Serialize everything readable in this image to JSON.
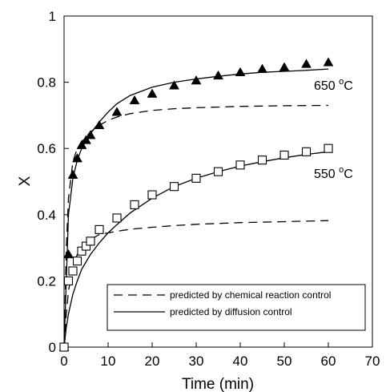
{
  "chart_data": {
    "type": "scatter",
    "xlabel": "Time (min)",
    "ylabel": "X",
    "xlim": [
      0,
      70
    ],
    "ylim": [
      0,
      1
    ],
    "x_ticks": [
      "0",
      "10",
      "20",
      "30",
      "40",
      "50",
      "60",
      "70"
    ],
    "y_ticks": [
      "0",
      "0.2",
      "0.4",
      "0.6",
      "0.8",
      "1"
    ],
    "grid": false,
    "legend": {
      "placement": "bottom-right",
      "entries": [
        {
          "label": "predicted by chemical reaction control",
          "style": "dashed"
        },
        {
          "label": "predicted by diffusion control",
          "style": "solid"
        }
      ]
    },
    "annotations": [
      {
        "text": "650 ",
        "sup": "o",
        "unit": "C"
      },
      {
        "text": "550 ",
        "sup": "o",
        "unit": "C"
      }
    ],
    "series": [
      {
        "marker": "filled-triangle",
        "color": "#000000",
        "x": [
          0,
          1,
          2,
          3,
          4,
          5,
          6,
          8,
          12,
          16,
          20,
          25,
          30,
          35,
          40,
          45,
          50,
          55,
          60
        ],
        "y": [
          0.0,
          0.28,
          0.52,
          0.57,
          0.61,
          0.625,
          0.64,
          0.67,
          0.71,
          0.745,
          0.765,
          0.79,
          0.805,
          0.82,
          0.83,
          0.84,
          0.845,
          0.855,
          0.86
        ]
      },
      {
        "marker": "open-square",
        "color": "#000000",
        "x": [
          0,
          1,
          2,
          3,
          4,
          5,
          6,
          8,
          12,
          16,
          20,
          25,
          30,
          35,
          40,
          45,
          50,
          55,
          60
        ],
        "y": [
          0.0,
          0.2,
          0.23,
          0.26,
          0.29,
          0.305,
          0.32,
          0.355,
          0.39,
          0.43,
          0.46,
          0.485,
          0.51,
          0.53,
          0.55,
          0.565,
          0.58,
          0.59,
          0.6
        ]
      }
    ],
    "curves": [
      {
        "style": "solid",
        "x": [
          0,
          0.5,
          1,
          2,
          3,
          4,
          5,
          6,
          8,
          10,
          12,
          15,
          20,
          25,
          30,
          35,
          40,
          45,
          50,
          55,
          60
        ],
        "y": [
          0,
          0.2,
          0.4,
          0.51,
          0.565,
          0.6,
          0.625,
          0.645,
          0.68,
          0.71,
          0.735,
          0.76,
          0.785,
          0.8,
          0.81,
          0.818,
          0.825,
          0.83,
          0.833,
          0.836,
          0.84
        ]
      },
      {
        "style": "dashed",
        "x": [
          0,
          0.5,
          1,
          2,
          3,
          4,
          5,
          6,
          8,
          10,
          12,
          15,
          20,
          25,
          30,
          40,
          50,
          60
        ],
        "y": [
          0,
          0.3,
          0.45,
          0.56,
          0.6,
          0.62,
          0.635,
          0.65,
          0.67,
          0.685,
          0.695,
          0.705,
          0.715,
          0.72,
          0.723,
          0.727,
          0.729,
          0.73
        ]
      },
      {
        "style": "solid",
        "x": [
          0,
          0.5,
          1,
          2,
          3,
          4,
          6,
          8,
          10,
          12,
          15,
          20,
          25,
          30,
          35,
          40,
          45,
          50,
          55,
          60
        ],
        "y": [
          0,
          0.06,
          0.1,
          0.16,
          0.2,
          0.235,
          0.28,
          0.315,
          0.345,
          0.37,
          0.405,
          0.45,
          0.485,
          0.51,
          0.53,
          0.547,
          0.56,
          0.572,
          0.582,
          0.59
        ]
      },
      {
        "style": "dashed",
        "x": [
          0,
          0.5,
          1,
          2,
          3,
          4,
          6,
          8,
          10,
          12,
          15,
          20,
          25,
          30,
          40,
          50,
          60
        ],
        "y": [
          0,
          0.1,
          0.17,
          0.24,
          0.28,
          0.3,
          0.325,
          0.34,
          0.345,
          0.35,
          0.356,
          0.362,
          0.367,
          0.371,
          0.376,
          0.379,
          0.382
        ]
      }
    ]
  }
}
